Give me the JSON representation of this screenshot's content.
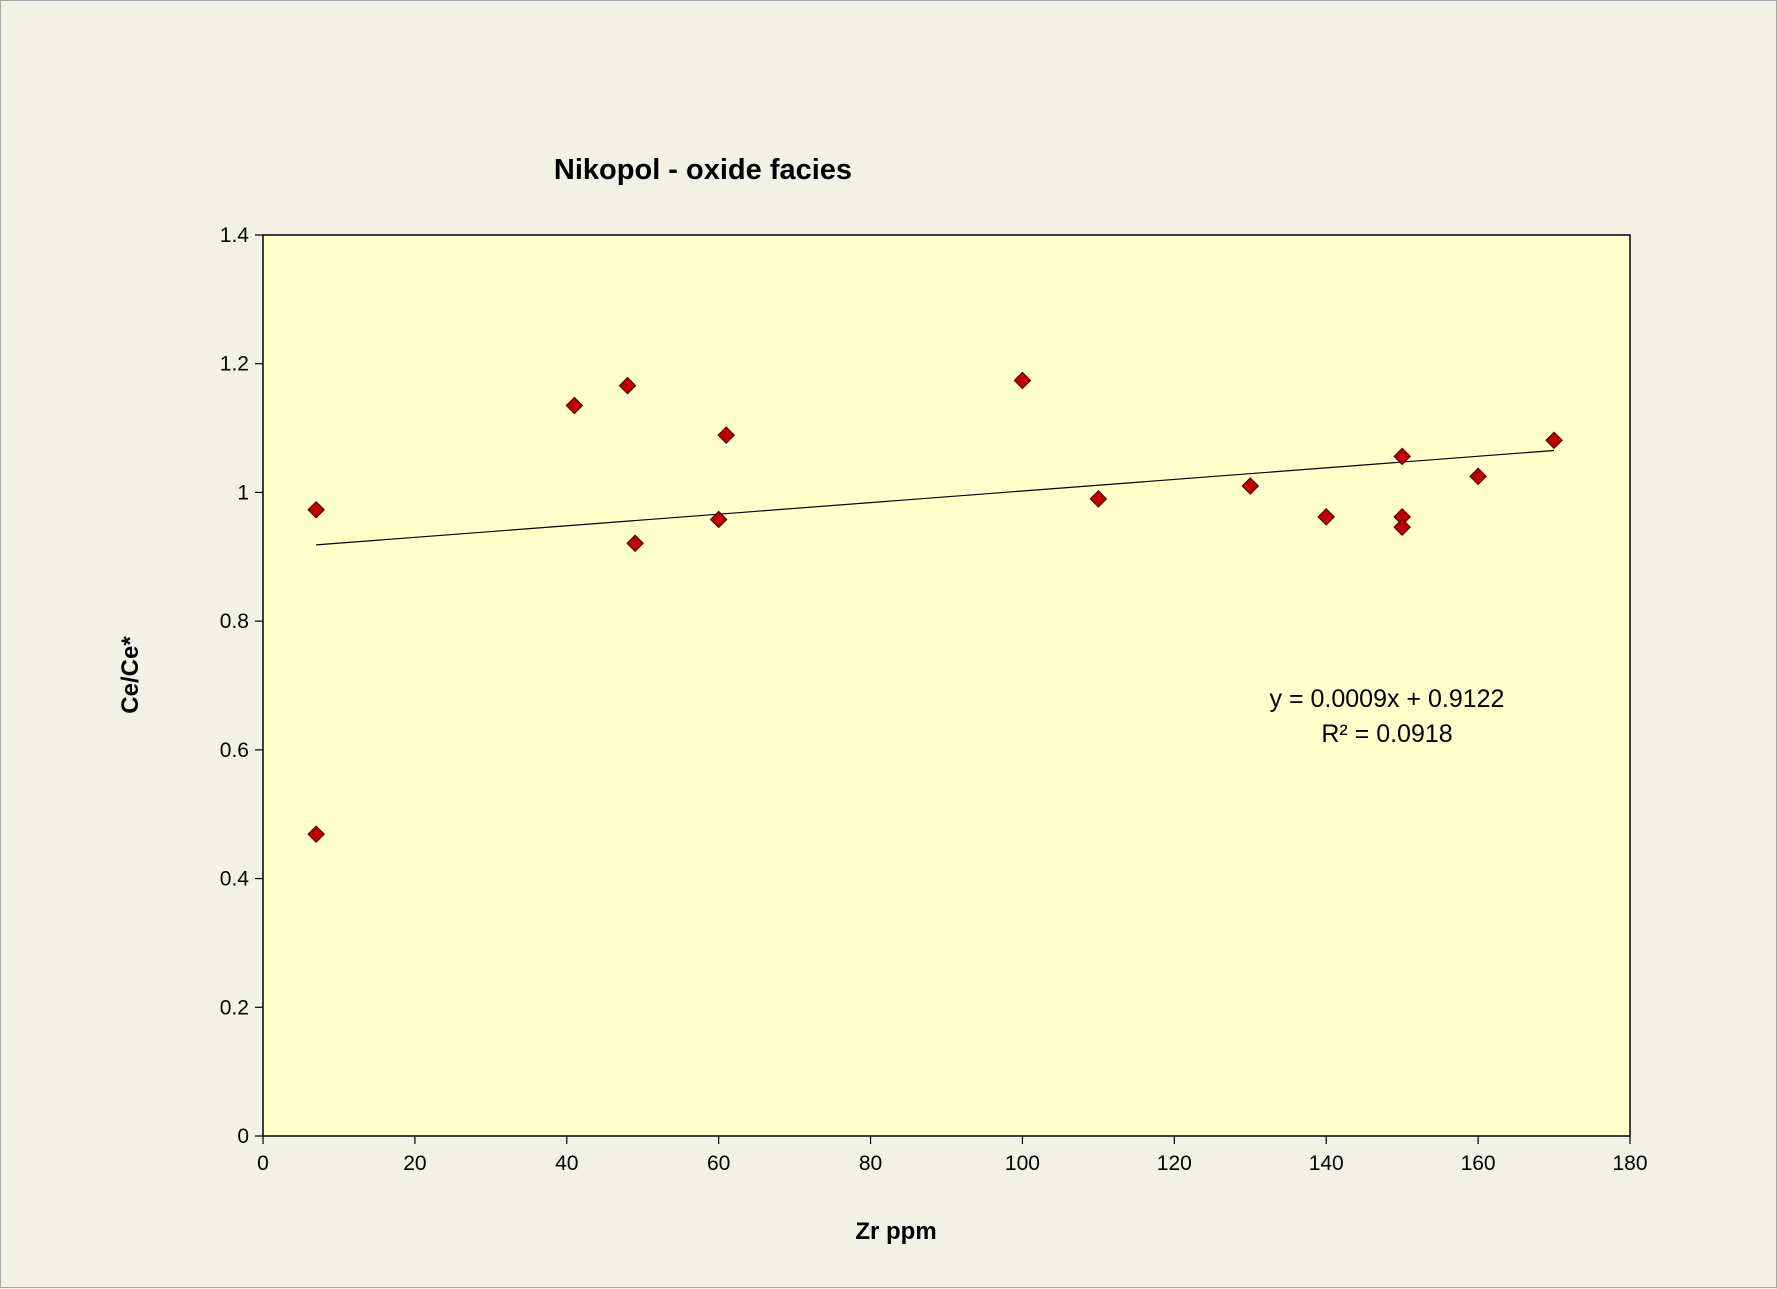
{
  "chart_data": {
    "type": "scatter",
    "title": "Nikopol - oxide facies",
    "xlabel": "Zr ppm",
    "ylabel": "Ce/Ce*",
    "xlim": [
      0,
      180
    ],
    "ylim": [
      0,
      1.4
    ],
    "x_ticks": [
      "0",
      "20",
      "40",
      "60",
      "80",
      "100",
      "120",
      "140",
      "160",
      "180"
    ],
    "y_ticks": [
      "0",
      "0.2",
      "0.4",
      "0.6",
      "0.8",
      "1",
      "1.2",
      "1.4"
    ],
    "grid": false,
    "legend": "none",
    "marker": "diamond",
    "colors": {
      "marker_fill": "#c00000",
      "marker_edge": "#5a0000",
      "plot_bg": "#ffffcc",
      "page_bg": "#f2f1e6",
      "trendline": "#000000"
    },
    "points": [
      {
        "x": 7,
        "y": 0.973
      },
      {
        "x": 7,
        "y": 0.469
      },
      {
        "x": 41,
        "y": 1.135
      },
      {
        "x": 48,
        "y": 1.166
      },
      {
        "x": 49,
        "y": 0.921
      },
      {
        "x": 60,
        "y": 0.958
      },
      {
        "x": 61,
        "y": 1.089
      },
      {
        "x": 100,
        "y": 1.174
      },
      {
        "x": 110,
        "y": 0.99
      },
      {
        "x": 130,
        "y": 1.01
      },
      {
        "x": 140,
        "y": 0.962
      },
      {
        "x": 150,
        "y": 1.056
      },
      {
        "x": 150,
        "y": 0.962
      },
      {
        "x": 150,
        "y": 0.946
      },
      {
        "x": 160,
        "y": 1.025
      },
      {
        "x": 170,
        "y": 1.081
      }
    ],
    "trendline": {
      "type": "linear",
      "slope": 0.0009,
      "intercept": 0.9122,
      "x_range": [
        7,
        170
      ],
      "equation_text": "y = 0.0009x + 0.9122",
      "r2_text": "R² = 0.0918"
    }
  }
}
